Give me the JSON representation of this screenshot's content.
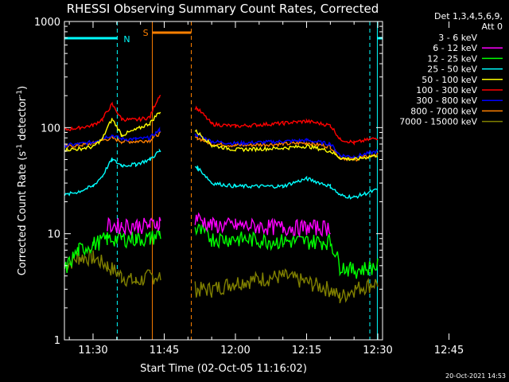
{
  "chart_data": {
    "type": "line",
    "title": "RHESSI Observing Summary Count Rates, Corrected",
    "xlabel": "Start Time (02-Oct-05 11:16:02)",
    "ylabel_main": "Corrected Count Rate (s",
    "ylabel_sup1": "-1",
    "ylabel_mid": " detector",
    "ylabel_sup2": "-1",
    "ylabel_end": ")",
    "yscale": "log",
    "ylim": [
      1,
      1000
    ],
    "xlim_minutes": [
      -6.03,
      61.0
    ],
    "x_unit": "minutes after 11:30",
    "ytick_values": [
      1,
      10,
      100,
      1000
    ],
    "ytick_labels": [
      "1",
      "10",
      "100",
      "1000"
    ],
    "xtick_values": [
      0,
      15,
      30,
      45,
      60,
      75
    ],
    "xtick_labels": [
      "11:30",
      "11:45",
      "12:00",
      "12:15",
      "12:30",
      "12:45"
    ],
    "grid": false,
    "legend": {
      "header1": "Det 1,3,4,5,6,9,",
      "header2": "Att 0",
      "placement": "right"
    },
    "data_gap_minutes": [
      14.4,
      21.4
    ],
    "annotations": {
      "night_label": "N",
      "saa_label": "S",
      "night_intervals_minutes": [
        [
          -6.03,
          5.1
        ],
        [
          59.9,
          61.0
        ]
      ],
      "saa_interval_minutes": [
        12.5,
        20.7
      ]
    },
    "footer_date": "20-Oct-2021 14:53",
    "series": [
      {
        "name": "3 - 6 keV",
        "color": "#000000",
        "x": [],
        "y": []
      },
      {
        "name": "6 - 12 keV",
        "color": "#ff00ff",
        "x": [
          -6,
          0,
          3,
          6,
          9,
          12,
          14,
          22,
          25,
          30,
          40,
          50,
          52
        ],
        "y": [
          null,
          null,
          12,
          12,
          12,
          12,
          13,
          14,
          12,
          12,
          11.5,
          11.5,
          null
        ]
      },
      {
        "name": "12 - 25 keV",
        "color": "#00ff00",
        "x": [
          -6,
          -3,
          0,
          3,
          6,
          9,
          12,
          14,
          22,
          25,
          30,
          40,
          50,
          52,
          55,
          60
        ],
        "y": [
          4.5,
          7,
          8,
          9,
          9,
          9,
          9,
          10,
          11,
          9,
          9,
          8.5,
          8.5,
          5,
          4.5,
          5
        ]
      },
      {
        "name": "25 - 50 keV",
        "color": "#00ffff",
        "x": [
          -6,
          -3,
          0,
          2,
          4,
          6,
          9,
          12,
          14,
          22,
          25,
          30,
          40,
          45,
          50,
          52,
          55,
          60
        ],
        "y": [
          23,
          25,
          28,
          35,
          50,
          44,
          45,
          50,
          60,
          42,
          30,
          28,
          28,
          33,
          28,
          23,
          22,
          26
        ]
      },
      {
        "name": "50 - 100 keV",
        "color": "#ffff00",
        "x": [
          -6,
          -3,
          0,
          2,
          4,
          6,
          9,
          12,
          14,
          22,
          25,
          30,
          40,
          45,
          50,
          52,
          55,
          60
        ],
        "y": [
          62,
          63,
          66,
          78,
          120,
          85,
          95,
          110,
          140,
          90,
          68,
          62,
          64,
          67,
          60,
          52,
          50,
          55
        ]
      },
      {
        "name": "100 - 300 keV",
        "color": "#ff0000",
        "x": [
          -6,
          -3,
          0,
          2,
          4,
          6,
          9,
          12,
          14,
          22,
          25,
          30,
          40,
          45,
          50,
          52,
          55,
          60
        ],
        "y": [
          95,
          100,
          105,
          120,
          165,
          120,
          118,
          125,
          200,
          150,
          108,
          103,
          110,
          115,
          105,
          78,
          72,
          80
        ]
      },
      {
        "name": "300 - 800 keV",
        "color": "#0000ff",
        "x": [
          -6,
          -3,
          0,
          2,
          4,
          6,
          9,
          12,
          14,
          22,
          25,
          30,
          40,
          45,
          50,
          52,
          55,
          60
        ],
        "y": [
          68,
          70,
          73,
          80,
          85,
          78,
          78,
          80,
          95,
          85,
          74,
          71,
          74,
          76,
          70,
          55,
          53,
          60
        ]
      },
      {
        "name": "800 - 7000 keV",
        "color": "#ff8000",
        "x": [
          -6,
          -3,
          0,
          2,
          4,
          6,
          9,
          12,
          14,
          22,
          25,
          30,
          40,
          45,
          50,
          52,
          55,
          60
        ],
        "y": [
          66,
          68,
          71,
          76,
          80,
          74,
          74,
          76,
          88,
          80,
          70,
          68,
          70,
          72,
          66,
          52,
          50,
          56
        ]
      },
      {
        "name": "7000 - 15000 keV",
        "color": "#808000",
        "x": [
          -6,
          -3,
          0,
          3,
          6,
          9,
          12,
          14,
          22,
          25,
          30,
          40,
          50,
          52,
          55,
          60
        ],
        "y": [
          5,
          6,
          6,
          5,
          4,
          3.5,
          4,
          4,
          3,
          3,
          3.5,
          4,
          3,
          2.5,
          3,
          3.5
        ]
      }
    ]
  }
}
